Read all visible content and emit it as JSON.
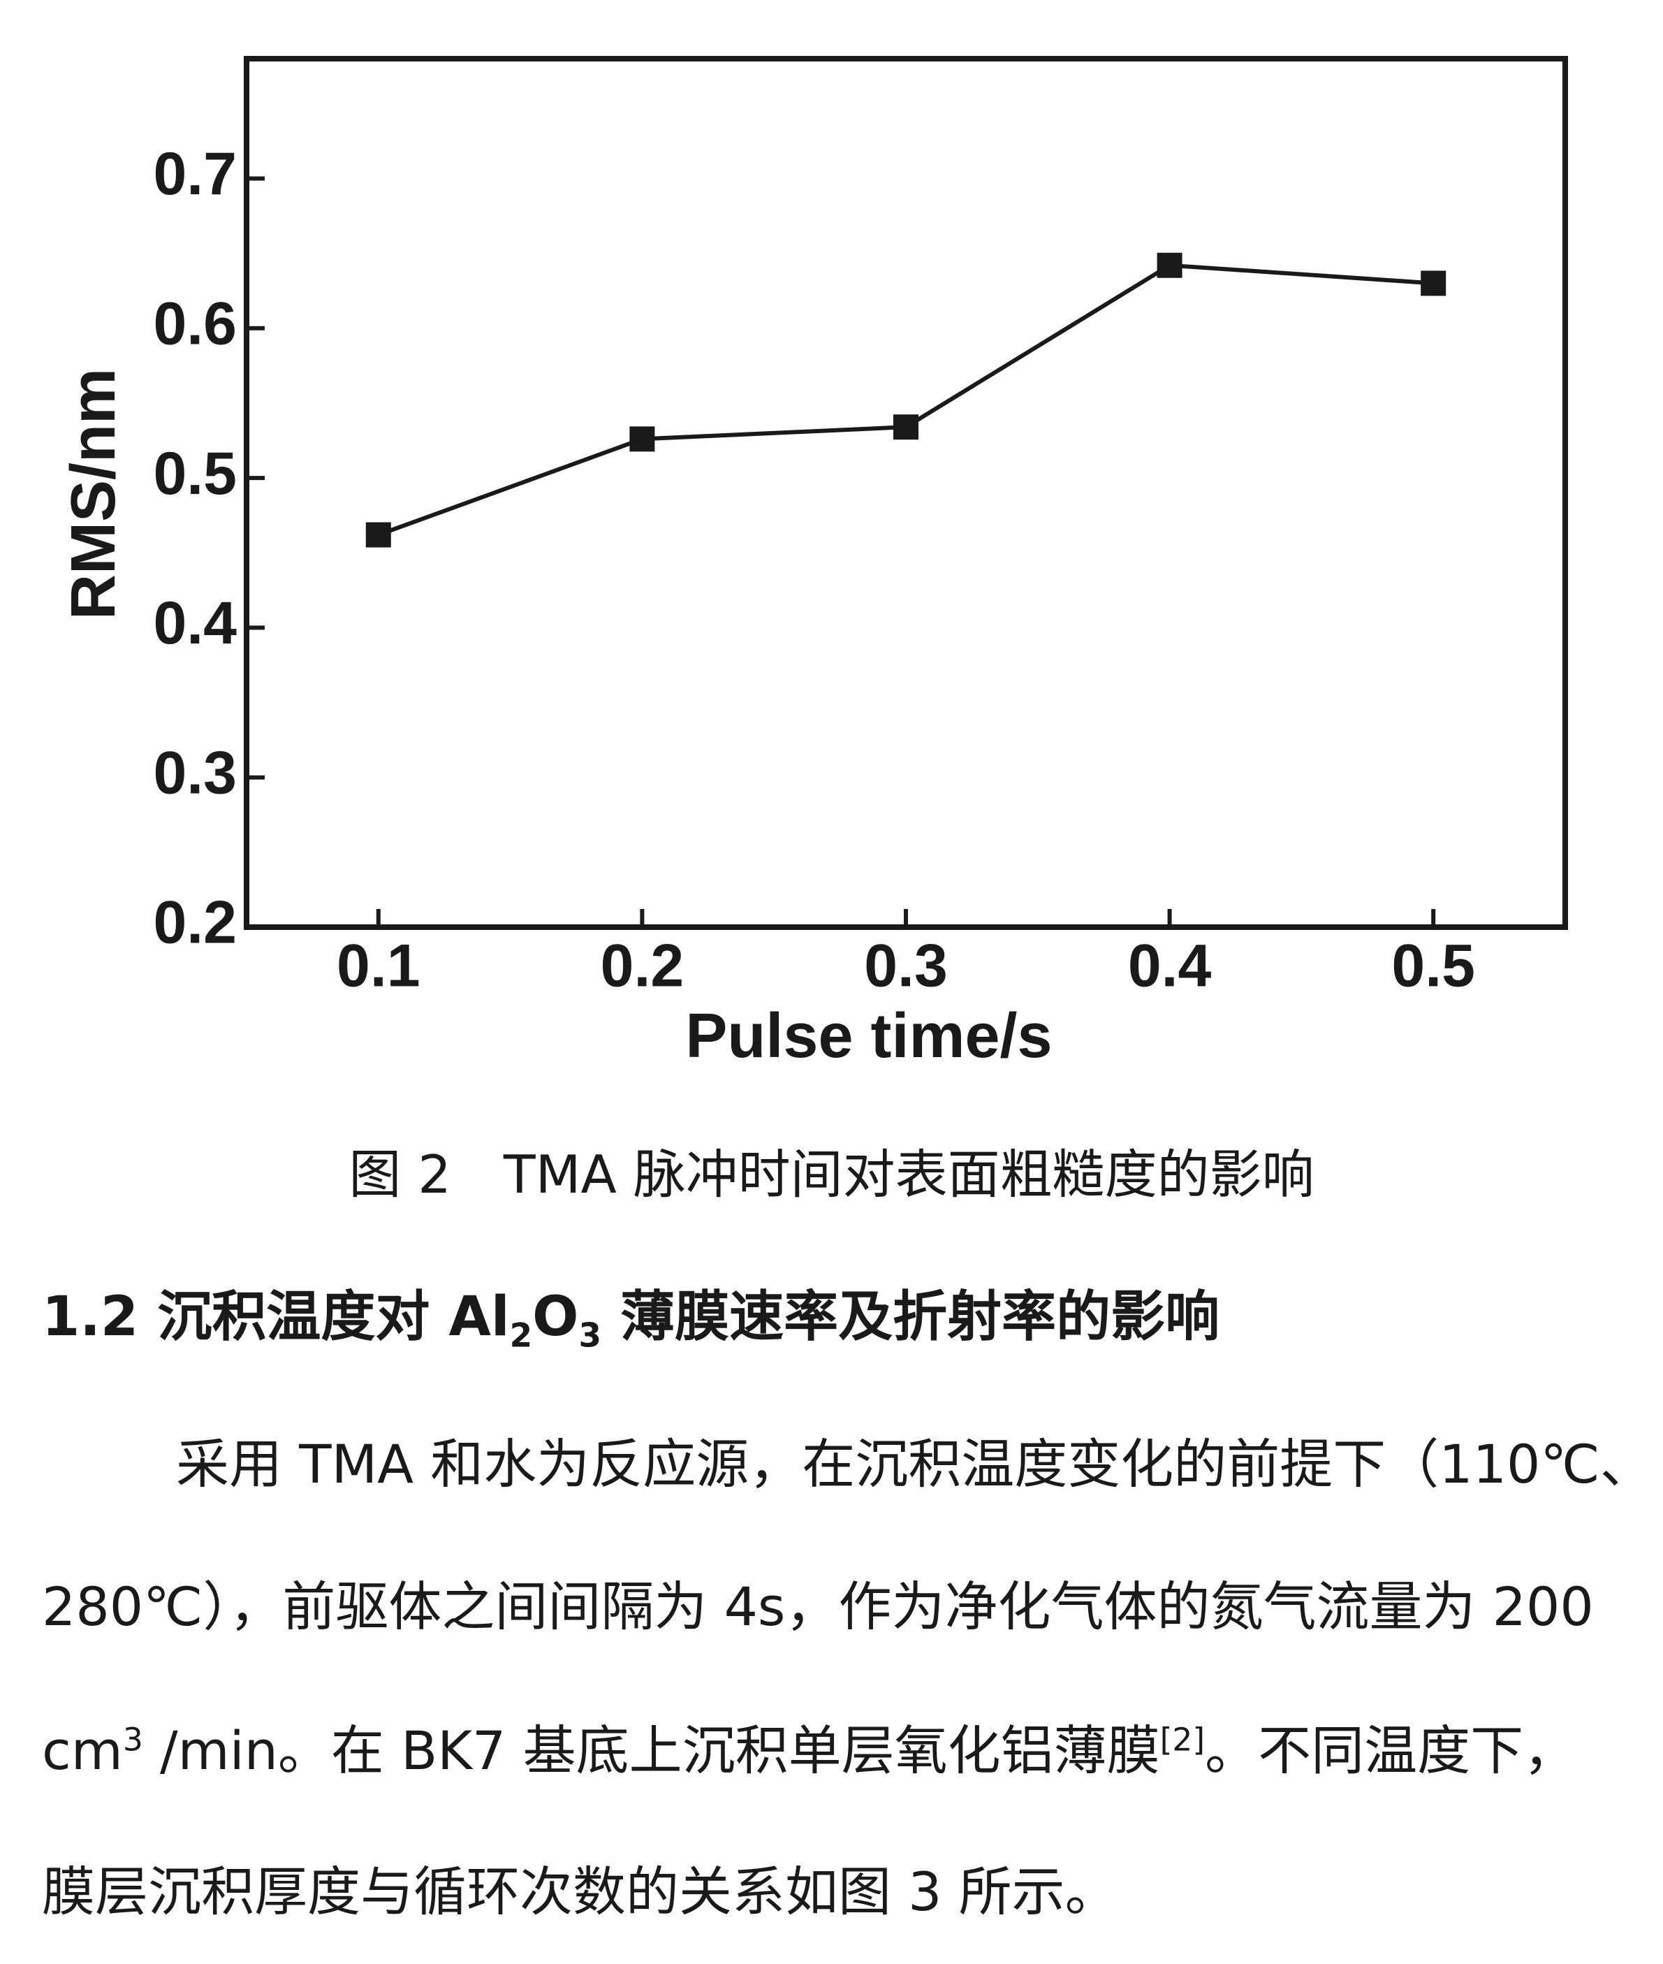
{
  "chart_data": {
    "type": "line",
    "x_label": "Pulse time/s",
    "y_label": "RMS/nm",
    "x": [
      0.1,
      0.2,
      0.3,
      0.4,
      0.5
    ],
    "series": [
      {
        "color": "#1a1a1a",
        "values": [
          0.462,
          0.526,
          0.534,
          0.642,
          0.63
        ]
      }
    ],
    "xlim": [
      0.05,
      0.55
    ],
    "xticks": [
      0.1,
      0.2,
      0.3,
      0.4,
      0.5
    ],
    "ylim": [
      0.2,
      0.78
    ],
    "yticks": [
      0.2,
      0.3,
      0.4,
      0.5,
      0.6,
      0.7
    ],
    "grid": false
  },
  "caption": "图 2　TMA 脉冲时间对表面粗糙度的影响",
  "heading": [
    "1.2 沉积温度对 Al",
    "2",
    "O",
    "3",
    " 薄膜速率及折射率的影响"
  ],
  "paragraph": [
    [
      "采用 TMA 和水为反应源，在沉积温度变化的前提下（110℃、"
    ],
    [
      "280℃），前驱体之间间隔为 4s，作为净化气体的氮气流量为 200"
    ],
    [
      "cm",
      "3",
      " /min。在 BK7 基底上沉积单层氧化铝薄膜",
      "[2]",
      "。不同温度下，"
    ],
    [
      "膜层沉积厚度与循环次数的关系如图 3 所示。"
    ]
  ]
}
